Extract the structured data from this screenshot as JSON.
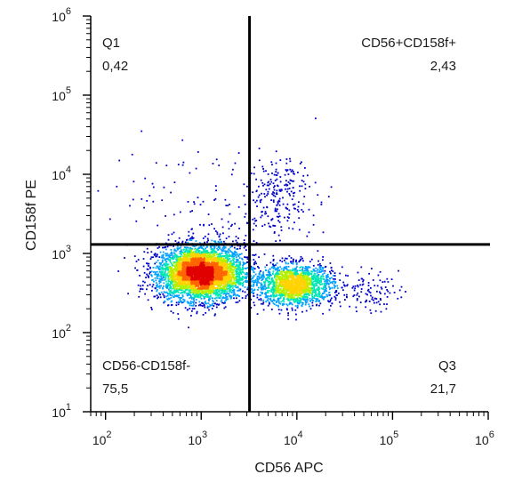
{
  "chart_data": {
    "type": "scatter",
    "subtype": "flow-cytometry-density-dot-plot",
    "xlabel": "CD56 APC",
    "ylabel": "CD158f PE",
    "x_scale": "log",
    "y_scale": "log",
    "xlim": [
      70,
      1000000
    ],
    "ylim": [
      10,
      1000000
    ],
    "x_ticks": [
      {
        "base": "10",
        "exp": "2",
        "value": 100
      },
      {
        "base": "10",
        "exp": "3",
        "value": 1000
      },
      {
        "base": "10",
        "exp": "4",
        "value": 10000
      },
      {
        "base": "10",
        "exp": "5",
        "value": 100000
      },
      {
        "base": "10",
        "exp": "6",
        "value": 1000000
      }
    ],
    "y_ticks": [
      {
        "base": "10",
        "exp": "1",
        "value": 10
      },
      {
        "base": "10",
        "exp": "2",
        "value": 100
      },
      {
        "base": "10",
        "exp": "3",
        "value": 1000
      },
      {
        "base": "10",
        "exp": "4",
        "value": 10000
      },
      {
        "base": "10",
        "exp": "5",
        "value": 100000
      },
      {
        "base": "10",
        "exp": "6",
        "value": 1000000
      }
    ],
    "gates": {
      "x": 3200,
      "y": 1300
    },
    "quadrants": [
      {
        "name": "Q1",
        "value": "0,42"
      },
      {
        "name": "CD56+CD158f+",
        "value": "2,43"
      },
      {
        "name": "CD56-CD158f-",
        "value": "75,5"
      },
      {
        "name": "Q3",
        "value": "21,7"
      }
    ],
    "populations": [
      {
        "cx": 1000,
        "cy": 560,
        "sx_dec": 0.23,
        "sy_dec": 0.17,
        "count": 4200
      },
      {
        "cx": 9500,
        "cy": 400,
        "sx_dec": 0.2,
        "sy_dec": 0.13,
        "count": 1700
      },
      {
        "cx": 6500,
        "cy": 5800,
        "sx_dec": 0.2,
        "sy_dec": 0.22,
        "count": 220
      },
      {
        "cx": 52000,
        "cy": 330,
        "sx_dec": 0.17,
        "sy_dec": 0.12,
        "count": 110
      },
      {
        "cx": 700,
        "cy": 6500,
        "sx_dec": 0.4,
        "sy_dec": 0.32,
        "count": 55
      },
      {
        "cx": 2500,
        "cy": 2300,
        "sx_dec": 0.3,
        "sy_dec": 0.17,
        "count": 70
      }
    ],
    "grid": false,
    "legend": "none",
    "density_colors": [
      "#0000c8",
      "#00a0ff",
      "#00e6b4",
      "#b4f000",
      "#ffd200",
      "#ff6400",
      "#e10000"
    ],
    "gate_color": "#000000"
  }
}
